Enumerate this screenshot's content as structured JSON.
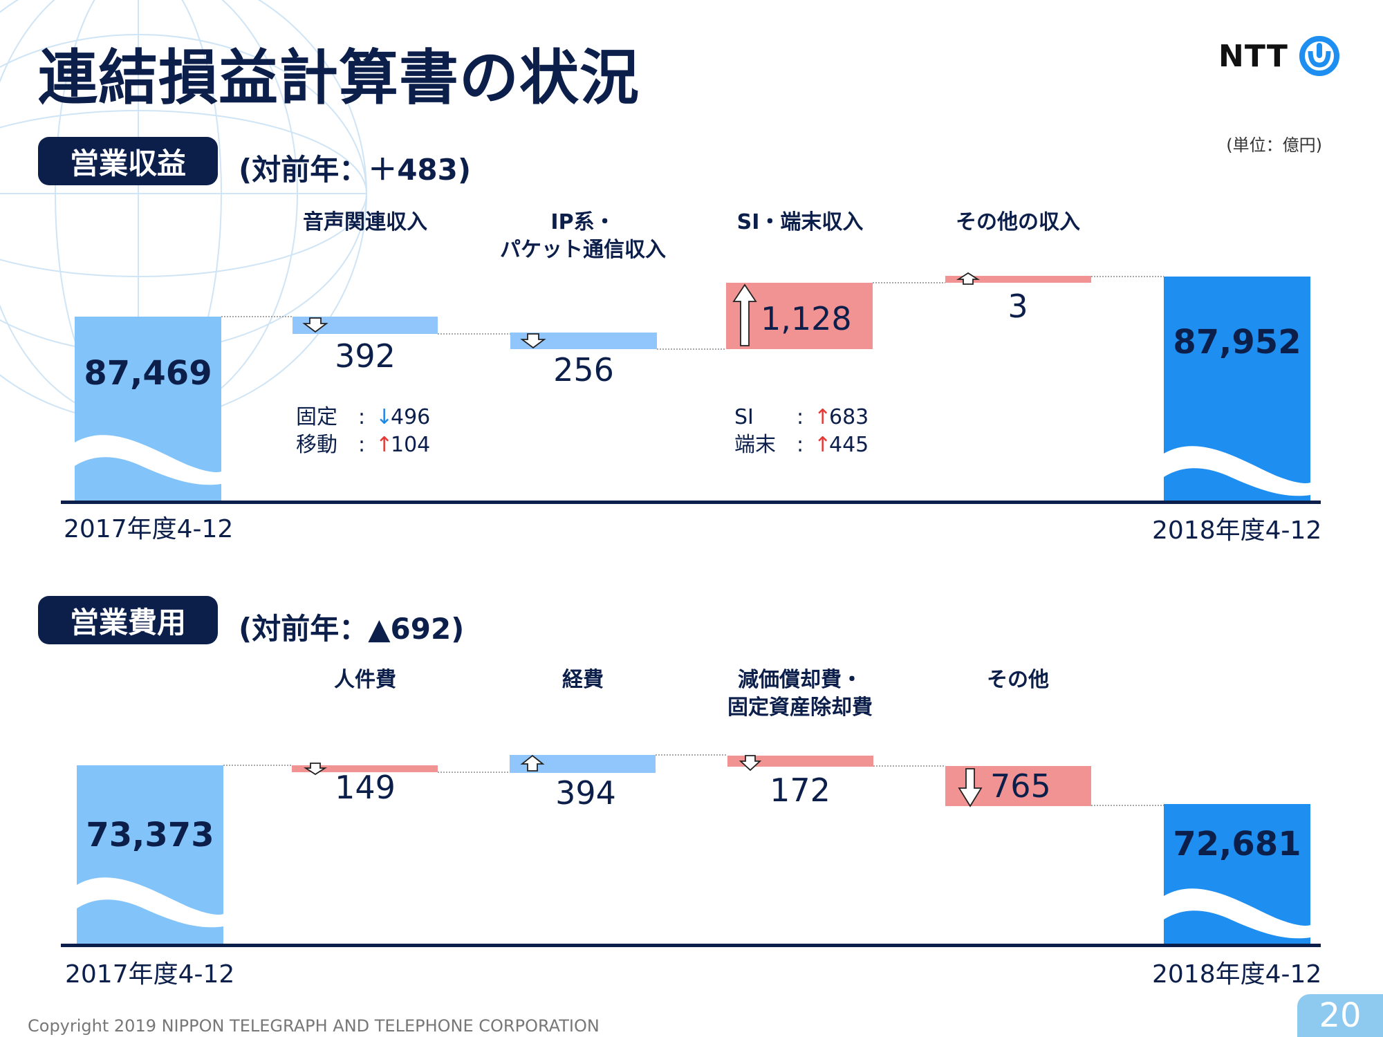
{
  "page_title": "連結損益計算書の状況",
  "logo_text": "NTT",
  "unit": "(単位：億円)",
  "revenue": {
    "badge": "営業収益",
    "subtitle": "(対前年：＋483)",
    "cat_voice": "音声関連収入",
    "cat_ip_1": "IP系・",
    "cat_ip_2": "パケット通信収入",
    "cat_si": "SI・端末収入",
    "cat_other": "その他の収入",
    "start_label": "87,469",
    "end_label": "87,952",
    "val_voice": "392",
    "val_ip": "256",
    "val_si": "1,128",
    "val_other": "3",
    "voice_fixed_label": "固定",
    "voice_fixed_value": "496",
    "voice_mobile_label": "移動",
    "voice_mobile_value": "104",
    "si_si_label": "SI",
    "si_si_value": "683",
    "si_device_label": "端末",
    "si_device_value": "445",
    "period_start": "2017年度4-12",
    "period_end": "2018年度4-12"
  },
  "expense": {
    "badge": "営業費用",
    "subtitle": "(対前年：▲692)",
    "cat_personnel": "人件費",
    "cat_expenses": "経費",
    "cat_dep_1": "減価償却費・",
    "cat_dep_2": "固定資産除却費",
    "cat_other": "その他",
    "start_label": "73,373",
    "end_label": "72,681",
    "val_personnel": "149",
    "val_expenses": "394",
    "val_dep": "172",
    "val_other": "765",
    "period_start": "2017年度4-12",
    "period_end": "2018年度4-12"
  },
  "colors": {
    "navy": "#0c1f4b",
    "light_blue": "#82c4fa",
    "dark_blue": "#1e8ff0",
    "change_blue": "#90c6fb",
    "change_red": "#f29393"
  },
  "copyright": "Copyright 2019 NIPPON TELEGRAPH AND TELEPHONE CORPORATION",
  "page_number": "20",
  "chart_data": [
    {
      "type": "bar",
      "subtype": "waterfall",
      "categories": [
        "2017年度4-12",
        "音声関連収入",
        "IP系・パケット通信収入",
        "SI・端末収入",
        "その他の収入",
        "2018年度4-12"
      ],
      "values": [
        87469,
        -392,
        -256,
        1128,
        3,
        87952
      ],
      "breakdown": {
        "音声関連収入": [
          {
            "label": "固定",
            "value": -496
          },
          {
            "label": "移動",
            "value": 104
          }
        ],
        "SI・端末収入": [
          {
            "label": "SI",
            "value": 683
          },
          {
            "label": "端末",
            "value": 445
          }
        ]
      }
    },
    {
      "type": "bar",
      "subtype": "waterfall",
      "categories": [
        "2017年度4-12",
        "人件費",
        "経費",
        "減価償却費・固定資産除却費",
        "その他",
        "2018年度4-12"
      ],
      "values": [
        73373,
        -149,
        394,
        -172,
        -765,
        72681
      ]
    }
  ]
}
